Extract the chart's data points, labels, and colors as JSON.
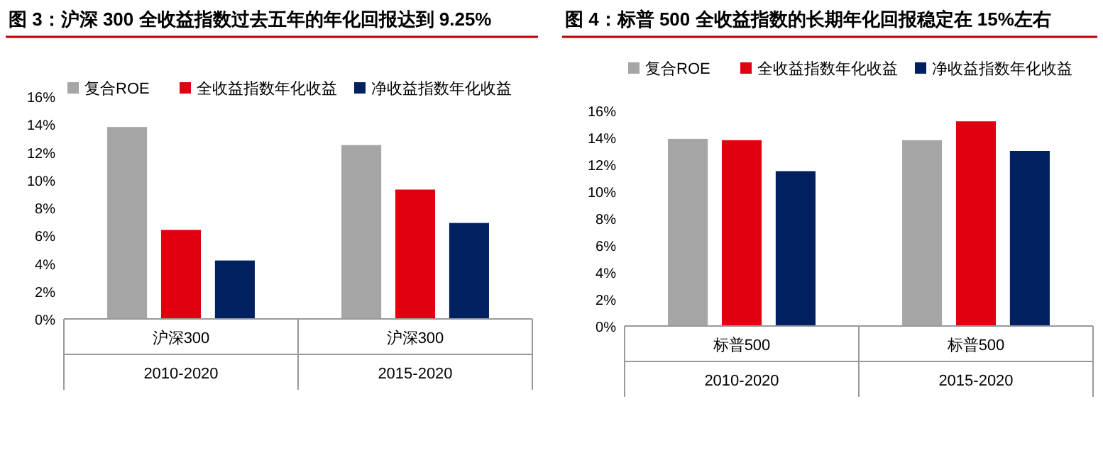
{
  "chart_data": [
    {
      "type": "bar",
      "title": "图 3：沪深 300 全收益指数过去五年的年化回报达到 9.25%",
      "categories": [
        "沪深300",
        "沪深300"
      ],
      "annotations": [
        "2010-2020",
        "2015-2020"
      ],
      "series": [
        {
          "name": "复合ROE",
          "color": "#a5a5a5",
          "values": [
            13.8,
            12.5
          ]
        },
        {
          "name": "全收益指数年化收益",
          "color": "#e00010",
          "values": [
            6.4,
            9.3
          ]
        },
        {
          "name": "净收益指数年化收益",
          "color": "#002060",
          "values": [
            4.2,
            6.9
          ]
        }
      ],
      "ylim": [
        0,
        16
      ],
      "yticks": [
        {
          "value": 0,
          "label": "0%"
        },
        {
          "value": 2,
          "label": "2%"
        },
        {
          "value": 4,
          "label": "4%"
        },
        {
          "value": 6,
          "label": "6%"
        },
        {
          "value": 8,
          "label": "8%"
        },
        {
          "value": 10,
          "label": "10%"
        },
        {
          "value": 12,
          "label": "12%"
        },
        {
          "value": 14,
          "label": "14%"
        },
        {
          "value": 16,
          "label": "16%"
        }
      ],
      "legend": "top",
      "grid": false
    },
    {
      "type": "bar",
      "title": "图 4：标普 500 全收益指数的长期年化回报稳定在 15%左右",
      "categories": [
        "标普500",
        "标普500"
      ],
      "annotations": [
        "2010-2020",
        "2015-2020"
      ],
      "series": [
        {
          "name": "复合ROE",
          "color": "#a5a5a5",
          "values": [
            13.9,
            13.8
          ]
        },
        {
          "name": "全收益指数年化收益",
          "color": "#e00010",
          "values": [
            13.8,
            15.2
          ]
        },
        {
          "name": "净收益指数年化收益",
          "color": "#002060",
          "values": [
            11.5,
            13.0
          ]
        }
      ],
      "ylim": [
        0,
        16
      ],
      "yticks": [
        {
          "value": 0,
          "label": "0%"
        },
        {
          "value": 2,
          "label": "2%"
        },
        {
          "value": 4,
          "label": "4%"
        },
        {
          "value": 6,
          "label": "6%"
        },
        {
          "value": 8,
          "label": "8%"
        },
        {
          "value": 10,
          "label": "10%"
        },
        {
          "value": 12,
          "label": "12%"
        },
        {
          "value": 14,
          "label": "14%"
        },
        {
          "value": 16,
          "label": "16%"
        }
      ],
      "legend": "top",
      "grid": false
    }
  ]
}
